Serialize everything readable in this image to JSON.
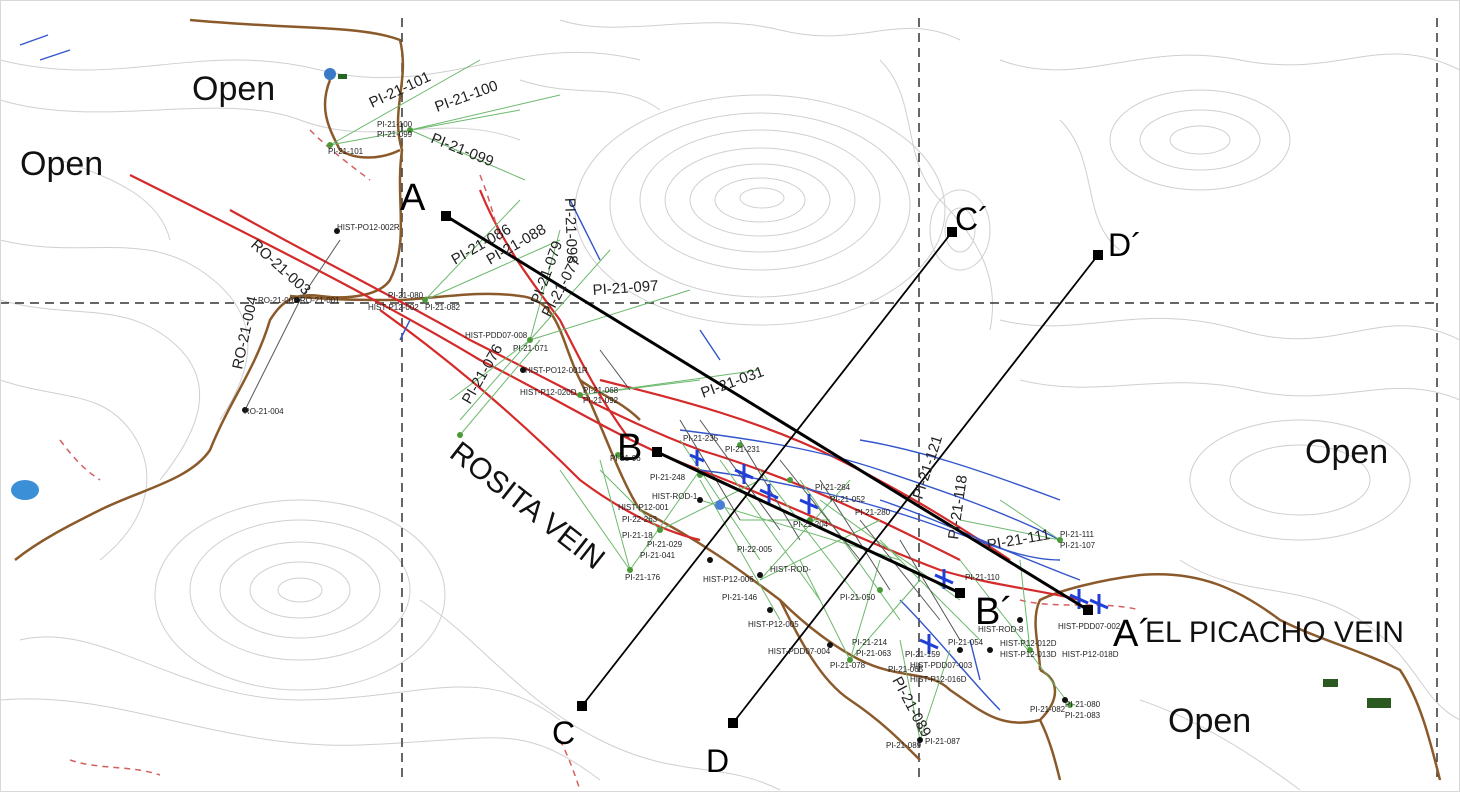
{
  "open_labels": [
    "Open",
    "Open",
    "Open",
    "Open"
  ],
  "vein_labels": {
    "rosita": "ROSITA VEIN",
    "picacho": "EL PICACHO VEIN"
  },
  "sections": [
    {
      "start": "A",
      "end": "A´"
    },
    {
      "start": "B",
      "end": "B´"
    },
    {
      "start": "C",
      "end": "C´"
    },
    {
      "start": "D",
      "end": "D´"
    }
  ],
  "drill_labels_large": [
    "PI-21-101",
    "PI-21-100",
    "PI-21-099",
    "PI-21-086",
    "PI-21-088",
    "PI-21-079",
    "PI-21-098",
    "PI-21-077",
    "PI-21-097",
    "RO-21-003",
    "RO-21-004",
    "PI-21-076",
    "PI-21-031",
    "PI-21-121",
    "PI-21-118",
    "PI-21-111",
    "PI-21-089"
  ],
  "drill_labels_small": [
    "PI-21-100",
    "PI-21-099",
    "PI-21-101",
    "HIST-PO12-002R",
    "RO-21-002",
    "RO-21-001",
    "PI-21-080",
    "HIST-P12-002",
    "PI-21-082",
    "HIST-PDD07-008",
    "PI-21-071",
    "HIST-PO12-001R",
    "HIST-P12-020D",
    "PI-21-068",
    "PI-21-092",
    "RO-21-004",
    "PI-21-235",
    "PI-21-231",
    "PI-21-06",
    "PI-21-248",
    "HIST-ROD-1",
    "PI-21-284",
    "PI-21-052",
    "PI-21-280",
    "PI-21-204",
    "HIST-P12-001",
    "PI-22-263",
    "PI-21-18",
    "PI-21-029",
    "PI-21-041",
    "PI-21-176",
    "PI-21-146",
    "HIST-P12-006",
    "HIST-ROD-",
    "PI-22-005",
    "HIST-P12-005",
    "PI-21-050",
    "PI-21-110",
    "PI-21-111",
    "PI-21-107",
    "HIST-ROD-8",
    "HIST-PDD07-002",
    "PI-21-054",
    "HIST-P12-012D",
    "HIST-P12-013D",
    "HIST-P12-018D",
    "HIST-PDD07-003",
    "HIST-P12-016D",
    "PI-21-214",
    "PI-21-063",
    "PI-21-078",
    "PI-21-065",
    "PI-21-159",
    "HIST-PDD07-004",
    "PI-21-080",
    "PI-21-083",
    "PI-21-082",
    "PI-21-087",
    "PI-21-089"
  ]
}
